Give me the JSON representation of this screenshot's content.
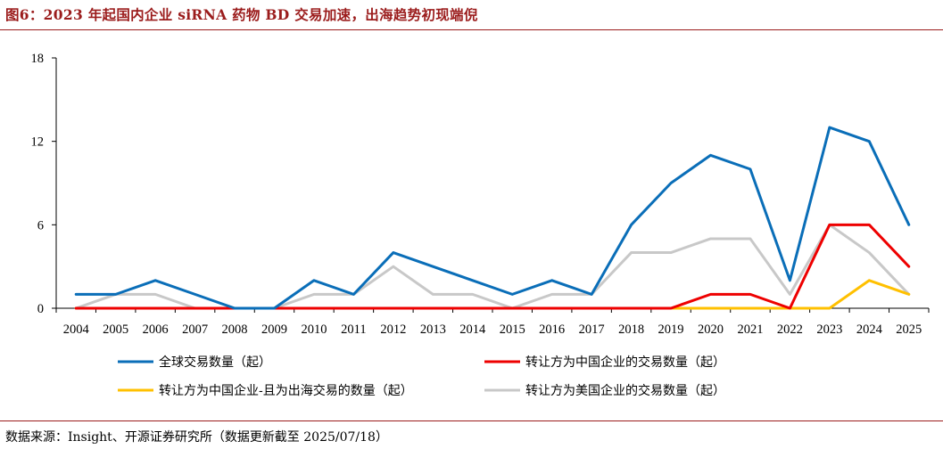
{
  "figure": {
    "title": "图6：2023 年起国内企业 siRNA 药物 BD 交易加速，出海趋势初现端倪",
    "source": "数据来源：Insight、开源证券研究所（数据更新截至 2025/07/18）"
  },
  "colors": {
    "title": "#9b1c1c",
    "series": [
      "#0a6eb8",
      "#ee0000",
      "#ffc000",
      "#c8c8c8"
    ]
  },
  "chart_data": {
    "type": "line",
    "title": "",
    "xlabel": "",
    "ylabel": "",
    "ylim": [
      0,
      18
    ],
    "yticks": [
      0,
      6,
      12,
      18
    ],
    "grid": false,
    "legend_position": "bottom",
    "x": [
      "2004",
      "2005",
      "2006",
      "2007",
      "2008",
      "2009",
      "2010",
      "2011",
      "2012",
      "2013",
      "2014",
      "2015",
      "2016",
      "2017",
      "2018",
      "2019",
      "2020",
      "2021",
      "2022",
      "2023",
      "2024",
      "2025"
    ],
    "series": [
      {
        "name": "全球交易数量（起）",
        "values": [
          1,
          1,
          2,
          1,
          0,
          0,
          2,
          1,
          4,
          3,
          2,
          1,
          2,
          1,
          6,
          9,
          11,
          10,
          2,
          13,
          12,
          6
        ]
      },
      {
        "name": "转让方为中国企业的交易数量（起）",
        "values": [
          0,
          0,
          0,
          0,
          0,
          0,
          0,
          0,
          0,
          0,
          0,
          0,
          0,
          0,
          0,
          0,
          1,
          1,
          0,
          6,
          6,
          3
        ]
      },
      {
        "name": "转让方为中国企业-且为出海交易的数量（起）",
        "values": [
          0,
          0,
          0,
          0,
          0,
          0,
          0,
          0,
          0,
          0,
          0,
          0,
          0,
          0,
          0,
          0,
          0,
          0,
          0,
          0,
          2,
          1
        ]
      },
      {
        "name": "转让方为美国企业的交易数量（起）",
        "values": [
          0,
          1,
          1,
          0,
          0,
          0,
          1,
          1,
          3,
          1,
          1,
          0,
          1,
          1,
          4,
          4,
          5,
          5,
          1,
          6,
          4,
          1
        ]
      }
    ]
  }
}
